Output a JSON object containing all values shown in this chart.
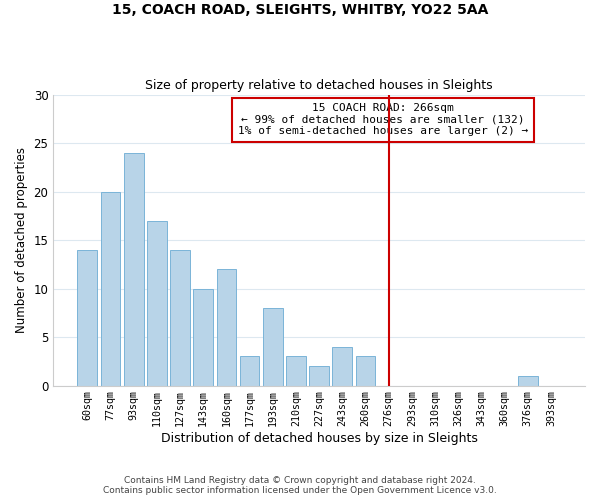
{
  "title": "15, COACH ROAD, SLEIGHTS, WHITBY, YO22 5AA",
  "subtitle": "Size of property relative to detached houses in Sleights",
  "xlabel": "Distribution of detached houses by size in Sleights",
  "ylabel": "Number of detached properties",
  "bar_color": "#b8d4e8",
  "bar_edge_color": "#7ab4d8",
  "categories": [
    "60sqm",
    "77sqm",
    "93sqm",
    "110sqm",
    "127sqm",
    "143sqm",
    "160sqm",
    "177sqm",
    "193sqm",
    "210sqm",
    "227sqm",
    "243sqm",
    "260sqm",
    "276sqm",
    "293sqm",
    "310sqm",
    "326sqm",
    "343sqm",
    "360sqm",
    "376sqm",
    "393sqm"
  ],
  "values": [
    14,
    20,
    24,
    17,
    14,
    10,
    12,
    3,
    8,
    3,
    2,
    4,
    3,
    0,
    0,
    0,
    0,
    0,
    0,
    1,
    0
  ],
  "ylim": [
    0,
    30
  ],
  "yticks": [
    0,
    5,
    10,
    15,
    20,
    25,
    30
  ],
  "vline_color": "#cc0000",
  "grid_color": "#dde8f0",
  "annotation_title": "15 COACH ROAD: 266sqm",
  "annotation_line1": "← 99% of detached houses are smaller (132)",
  "annotation_line2": "1% of semi-detached houses are larger (2) →",
  "footer1": "Contains HM Land Registry data © Crown copyright and database right 2024.",
  "footer2": "Contains public sector information licensed under the Open Government Licence v3.0."
}
